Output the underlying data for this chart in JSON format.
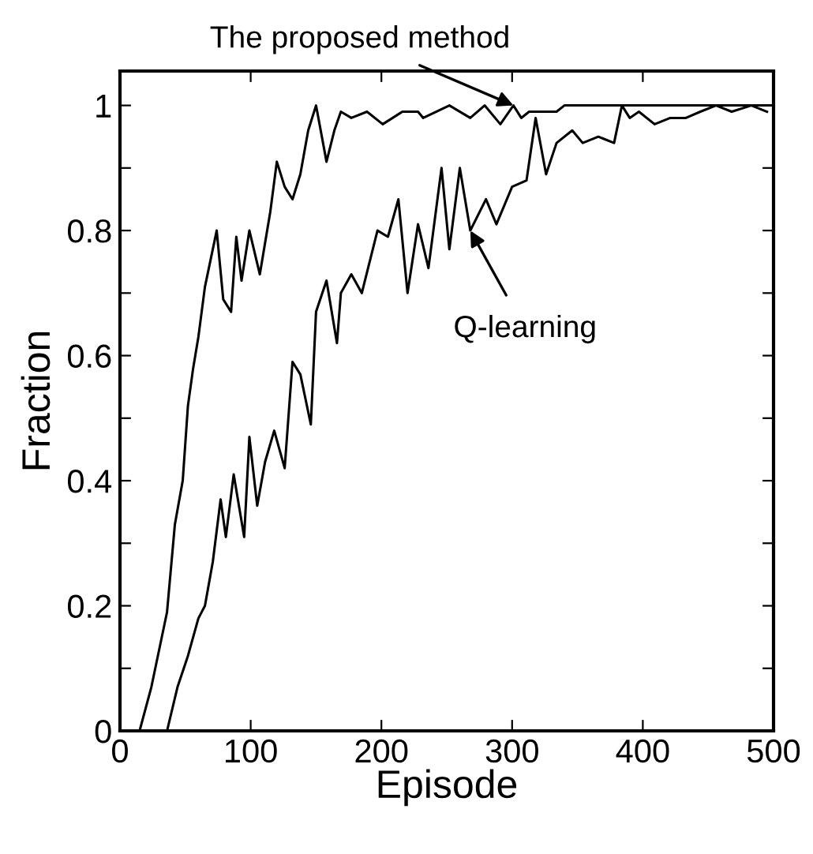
{
  "chart_data": {
    "type": "line",
    "xlabel": "Episode",
    "ylabel": "Fraction",
    "xlim": [
      0,
      500
    ],
    "ylim": [
      0,
      1.055
    ],
    "xticks": [
      0,
      100,
      200,
      300,
      400,
      500
    ],
    "yticks": [
      0,
      {
        "value": 0.1,
        "label": null
      },
      {
        "value": 0.2,
        "label": "0.2"
      },
      {
        "value": 0.3,
        "label": null
      },
      {
        "value": 0.4,
        "label": "0.4"
      },
      {
        "value": 0.5,
        "label": null
      },
      {
        "value": 0.6,
        "label": "0.6"
      },
      {
        "value": 0.7,
        "label": null
      },
      {
        "value": 0.8,
        "label": "0.8"
      },
      {
        "value": 0.9,
        "label": null
      },
      1
    ],
    "grid": false,
    "legend": false,
    "series": [
      {
        "color": "#000000",
        "x": [
          15,
          24,
          36,
          42,
          48,
          52,
          56,
          60,
          65,
          74,
          79,
          85,
          89,
          93,
          99,
          107,
          115,
          120,
          126,
          132,
          138,
          144,
          150,
          158,
          164,
          169,
          177,
          189,
          201,
          216,
          228,
          232,
          252,
          268,
          279,
          291,
          301,
          307,
          313,
          334,
          340,
          500
        ],
        "values": [
          0,
          0.07,
          0.19,
          0.33,
          0.4,
          0.52,
          0.58,
          0.63,
          0.71,
          0.8,
          0.69,
          0.67,
          0.79,
          0.72,
          0.8,
          0.73,
          0.83,
          0.91,
          0.87,
          0.85,
          0.89,
          0.96,
          1.0,
          0.91,
          0.96,
          0.99,
          0.98,
          0.99,
          0.97,
          0.99,
          0.99,
          0.98,
          1.0,
          0.98,
          1.0,
          0.97,
          1.0,
          0.98,
          0.99,
          0.99,
          1.0,
          1.0
        ]
      },
      {
        "color": "#000000",
        "x": [
          36,
          44,
          52,
          60,
          65,
          71,
          77,
          81,
          87,
          95,
          99,
          105,
          111,
          118,
          126,
          132,
          138,
          146,
          150,
          158,
          166,
          169,
          177,
          185,
          197,
          205,
          213,
          220,
          228,
          236,
          246,
          252,
          260,
          268,
          280,
          288,
          300,
          311,
          318,
          326,
          334,
          346,
          354,
          366,
          378,
          384,
          390,
          397,
          409,
          421,
          433,
          444,
          456,
          468,
          483,
          495
        ],
        "values": [
          0,
          0.07,
          0.12,
          0.18,
          0.2,
          0.27,
          0.37,
          0.31,
          0.41,
          0.31,
          0.47,
          0.36,
          0.43,
          0.48,
          0.42,
          0.59,
          0.57,
          0.49,
          0.67,
          0.72,
          0.62,
          0.7,
          0.73,
          0.7,
          0.8,
          0.79,
          0.85,
          0.7,
          0.81,
          0.74,
          0.9,
          0.77,
          0.9,
          0.8,
          0.85,
          0.81,
          0.87,
          0.88,
          0.98,
          0.89,
          0.94,
          0.96,
          0.94,
          0.95,
          0.94,
          1.0,
          0.98,
          0.99,
          0.97,
          0.98,
          0.98,
          0.99,
          1.0,
          0.99,
          1.0,
          0.99
        ]
      }
    ],
    "annotations": [
      {
        "text": "The proposed method",
        "x": 301,
        "y": 1.0
      },
      {
        "text": "Q-learning",
        "x": 268,
        "y": 0.8
      }
    ]
  }
}
